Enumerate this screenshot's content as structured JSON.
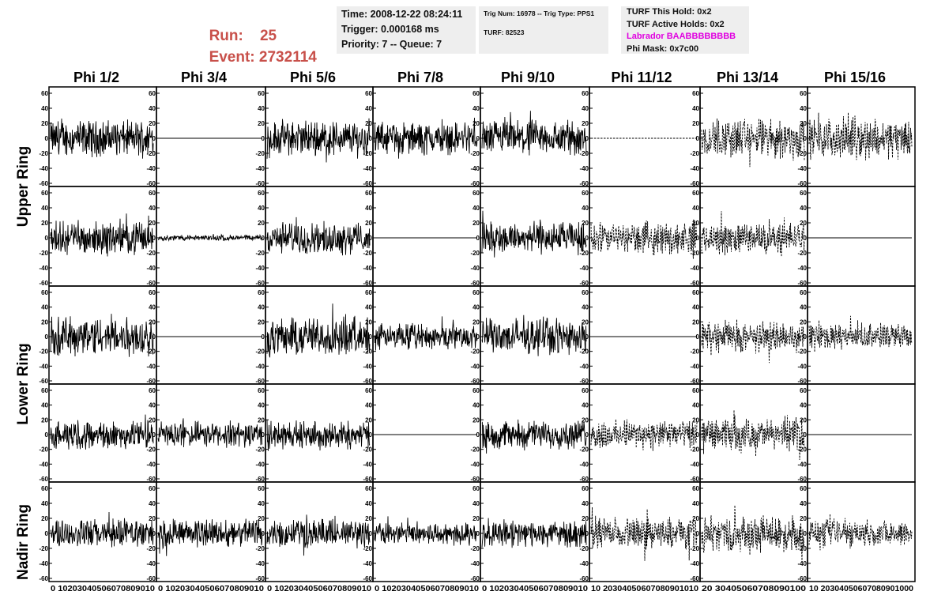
{
  "header": {
    "run_label": "Run:",
    "run_value": "25",
    "event_label": "Event:",
    "event_value": "2732114",
    "time_line": "Time: 2008-12-22 08:24:11",
    "trigger_line": "Trigger: 0.000168 ms",
    "priority_line": "Priority: 7 -- Queue: 7",
    "trig_line": "Trig Num: 16978 -- Trig Type: PPS1",
    "turf_line": "TURF: 82523",
    "turf_hold_line": "TURF This Hold: 0x2",
    "turf_active_line": "TURF Active Holds: 0x2",
    "labrador_line": "Labrador BAABBBBBBBB",
    "phi_mask_line": "Phi Mask: 0x7c00"
  },
  "colors": {
    "run_text": "#c8504a",
    "labrador_text": "#e000e0",
    "info_bg": "#eeeeee",
    "trace": "#000000"
  },
  "columns": [
    "Phi 1/2",
    "Phi 3/4",
    "Phi 5/6",
    "Phi 7/8",
    "Phi 9/10",
    "Phi 11/12",
    "Phi 13/14",
    "Phi 15/16"
  ],
  "rings": [
    "Upper Ring",
    "Lower Ring",
    "Nadir Ring"
  ],
  "chart_data": {
    "type": "line",
    "layout": "grid of 5 rows x 8 columns of waveform panels",
    "rows": 5,
    "cols": 8,
    "xlim": [
      0,
      100
    ],
    "ylim": [
      -60,
      60
    ],
    "x_tick_labels": [
      "0",
      "10",
      "20",
      "30",
      "40",
      "50",
      "60",
      "70",
      "80",
      "90",
      "100"
    ],
    "y_tick_labels": [
      "60",
      "40",
      "20",
      "0",
      "-20",
      "-40",
      "-60"
    ],
    "bottom_axis_text": [
      "0 10203040506070809010",
      "0 10203040506070809010",
      "0 10203040506070809010",
      "0 10203040506070809010",
      "0 10203040506070809010",
      "10 20304050607080901010",
      "20 30405060708090100",
      "10 20304050607080901000"
    ],
    "grid": false,
    "panel_style": [
      [
        "solid",
        "solid",
        "solid",
        "solid",
        "solid",
        "dashed",
        "dashed",
        "dashed"
      ],
      [
        "solid",
        "solid",
        "solid",
        "solid",
        "solid",
        "dashed",
        "dashed",
        "solid"
      ],
      [
        "solid",
        "solid",
        "solid",
        "solid",
        "solid",
        "solid",
        "dashed",
        "dashed"
      ],
      [
        "solid",
        "solid",
        "solid",
        "solid",
        "solid",
        "dashed",
        "dashed",
        "solid"
      ],
      [
        "solid",
        "solid",
        "solid",
        "solid",
        "solid",
        "dashed",
        "dashed",
        "dashed"
      ]
    ],
    "panel_amplitude": [
      [
        25,
        0,
        25,
        22,
        25,
        0,
        28,
        28
      ],
      [
        22,
        4,
        22,
        0,
        22,
        22,
        22,
        0
      ],
      [
        28,
        0,
        28,
        18,
        25,
        0,
        22,
        18
      ],
      [
        20,
        18,
        20,
        0,
        20,
        20,
        22,
        0
      ],
      [
        20,
        20,
        20,
        15,
        18,
        22,
        25,
        18
      ]
    ]
  }
}
